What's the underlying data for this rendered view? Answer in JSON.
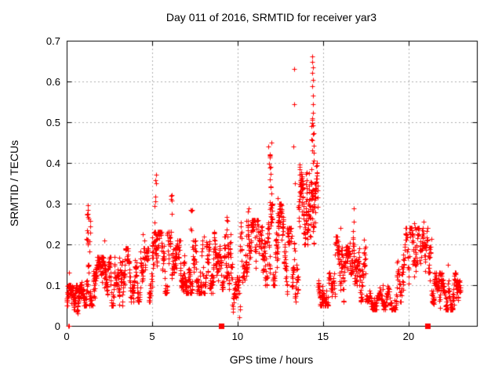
{
  "chart_data": {
    "type": "scatter",
    "title": "Day 011 of 2016, SRMTID for receiver yar3",
    "xlabel": "GPS time / hours",
    "ylabel": "SRMTID / TECUs",
    "xlim": [
      0,
      24
    ],
    "ylim": [
      0,
      0.7
    ],
    "xticks": {
      "values": [
        0,
        5,
        10,
        15,
        20
      ],
      "labels": [
        "0",
        "5",
        "10",
        "15",
        "20"
      ]
    },
    "yticks": {
      "values": [
        0,
        0.1,
        0.2,
        0.3,
        0.4,
        0.5,
        0.6,
        0.7
      ],
      "labels": [
        "0",
        "0.1",
        "0.2",
        "0.3",
        "0.4",
        "0.5",
        "0.6",
        "0.7"
      ]
    },
    "grid": true,
    "legend": "none",
    "marker": "plus",
    "colors": {
      "points": "#ff0000",
      "grid": "#b0b0b0",
      "axis": "#000000",
      "background": "#ffffff"
    },
    "seed": 20160111,
    "scatter_model": {
      "bands": [
        [
          0.0,
          0.85,
          100,
          0.03,
          0.1
        ],
        [
          0.85,
          1.75,
          70,
          0.05,
          0.15
        ],
        [
          1.75,
          3.3,
          140,
          0.05,
          0.17
        ],
        [
          3.3,
          5.0,
          140,
          0.06,
          0.19
        ],
        [
          5.0,
          6.3,
          100,
          0.08,
          0.23
        ],
        [
          6.3,
          8.6,
          190,
          0.08,
          0.21
        ],
        [
          8.6,
          9.7,
          85,
          0.09,
          0.23
        ],
        [
          9.7,
          10.15,
          35,
          0.02,
          0.12
        ],
        [
          10.15,
          11.75,
          130,
          0.1,
          0.26
        ],
        [
          11.75,
          12.7,
          90,
          0.1,
          0.3
        ],
        [
          12.7,
          13.55,
          70,
          0.06,
          0.24
        ],
        [
          13.55,
          14.7,
          130,
          0.2,
          0.4
        ],
        [
          14.7,
          15.7,
          80,
          0.05,
          0.13
        ],
        [
          15.7,
          17.5,
          150,
          0.06,
          0.22
        ],
        [
          17.5,
          19.3,
          120,
          0.04,
          0.11
        ],
        [
          19.3,
          21.35,
          130,
          0.06,
          0.24
        ],
        [
          21.35,
          23.05,
          150,
          0.04,
          0.13
        ]
      ],
      "spikes": [
        [
          1.28,
          0.14,
          20,
          0.17,
          0.3
        ],
        [
          5.2,
          0.1,
          14,
          0.16,
          0.375
        ],
        [
          6.15,
          0.06,
          5,
          0.24,
          0.33
        ],
        [
          7.3,
          0.06,
          5,
          0.2,
          0.3
        ],
        [
          9.35,
          0.12,
          7,
          0.2,
          0.27
        ],
        [
          10.6,
          0.1,
          7,
          0.22,
          0.31
        ],
        [
          11.9,
          0.1,
          18,
          0.28,
          0.465
        ],
        [
          12.35,
          0.08,
          8,
          0.22,
          0.33
        ],
        [
          14.38,
          0.07,
          8,
          0.4,
          0.52
        ],
        [
          16.78,
          0.04,
          4,
          0.2,
          0.305
        ],
        [
          20.45,
          0.3,
          10,
          0.14,
          0.26
        ]
      ],
      "points": [
        [
          0.08,
          0.0
        ],
        [
          0.16,
          0.0
        ],
        [
          0.13,
          0.13
        ],
        [
          13.3,
          0.63
        ],
        [
          13.33,
          0.545
        ],
        [
          13.28,
          0.44
        ],
        [
          13.35,
          0.35
        ],
        [
          14.35,
          0.662
        ],
        [
          14.38,
          0.648
        ],
        [
          14.41,
          0.634
        ],
        [
          14.36,
          0.622
        ],
        [
          14.4,
          0.603
        ],
        [
          14.37,
          0.588
        ],
        [
          14.42,
          0.565
        ],
        [
          14.39,
          0.545
        ],
        [
          14.43,
          0.524
        ],
        [
          14.35,
          0.505
        ],
        [
          14.3,
          0.49
        ],
        [
          14.45,
          0.474
        ],
        [
          14.33,
          0.458
        ],
        [
          14.47,
          0.443
        ],
        [
          14.44,
          0.425
        ],
        [
          2.2,
          0.21
        ],
        [
          4.45,
          0.225
        ],
        [
          4.55,
          0.21
        ],
        [
          8.05,
          0.22
        ],
        [
          16.0,
          0.24
        ],
        [
          22.3,
          0.15
        ],
        [
          20.9,
          0.255
        ]
      ],
      "squares": [
        [
          9.03,
          0
        ],
        [
          21.1,
          0
        ]
      ]
    }
  }
}
